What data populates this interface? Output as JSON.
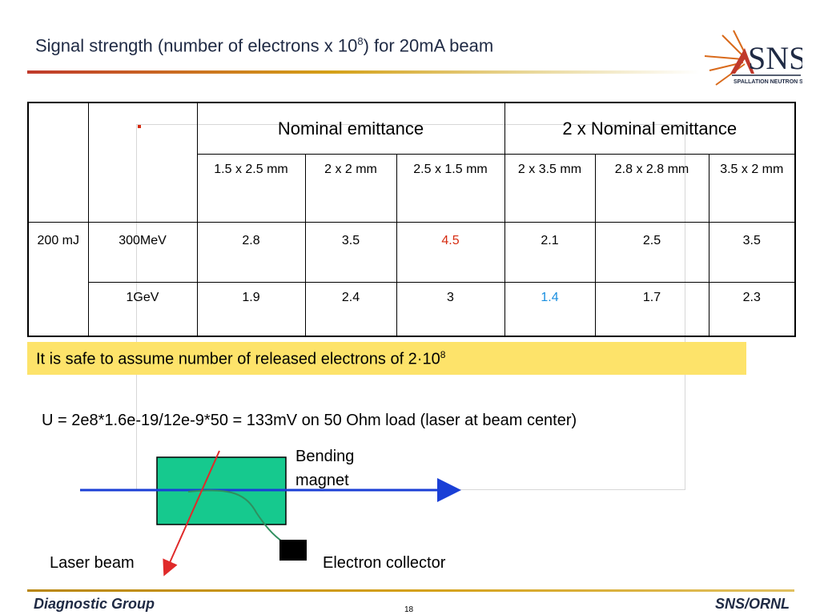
{
  "slide": {
    "title": "Signal strength (number of electrons x 10",
    "title_sup": "8",
    "title_tail": ") for 20mA beam"
  },
  "logo": {
    "text": "SNS",
    "subtitle": "SPALLATION NEUTRON SOURCE"
  },
  "table": {
    "group_headers": [
      "Nominal emittance",
      "2 x Nominal emittance"
    ],
    "emittances": [
      "1.5 x 2.5 mm",
      "2 x 2 mm",
      "2.5 x 1.5 mm",
      "2 x 3.5 mm",
      "2.8 x 2.8 mm",
      "3.5 x 2 mm"
    ],
    "pulse": "200 mJ",
    "rows": [
      {
        "energy": "300MeV",
        "values": [
          "2.8",
          "3.5",
          "4.5",
          "2.1",
          "2.5",
          "3.5"
        ]
      },
      {
        "energy": "1GeV",
        "values": [
          "1.9",
          "2.4",
          "3",
          "1.4",
          "1.7",
          "2.3"
        ]
      }
    ],
    "highlight_colors": {
      "max": "#d62b10",
      "min": "#1a8fe0"
    }
  },
  "note": {
    "text": "It is safe to assume number of released electrons of 2·10",
    "sup": "8"
  },
  "formula": "U = 2e8*1.6e-19/12e-9*50 = 133mV  on 50 Ohm load (laser at beam center)",
  "diagram": {
    "bending_magnet_label": "Bending magnet",
    "laser_label": "Laser beam",
    "collector_label": "Electron collector"
  },
  "footer": {
    "left": "Diagnostic Group",
    "right": "SNS/ORNL",
    "page": "18"
  }
}
